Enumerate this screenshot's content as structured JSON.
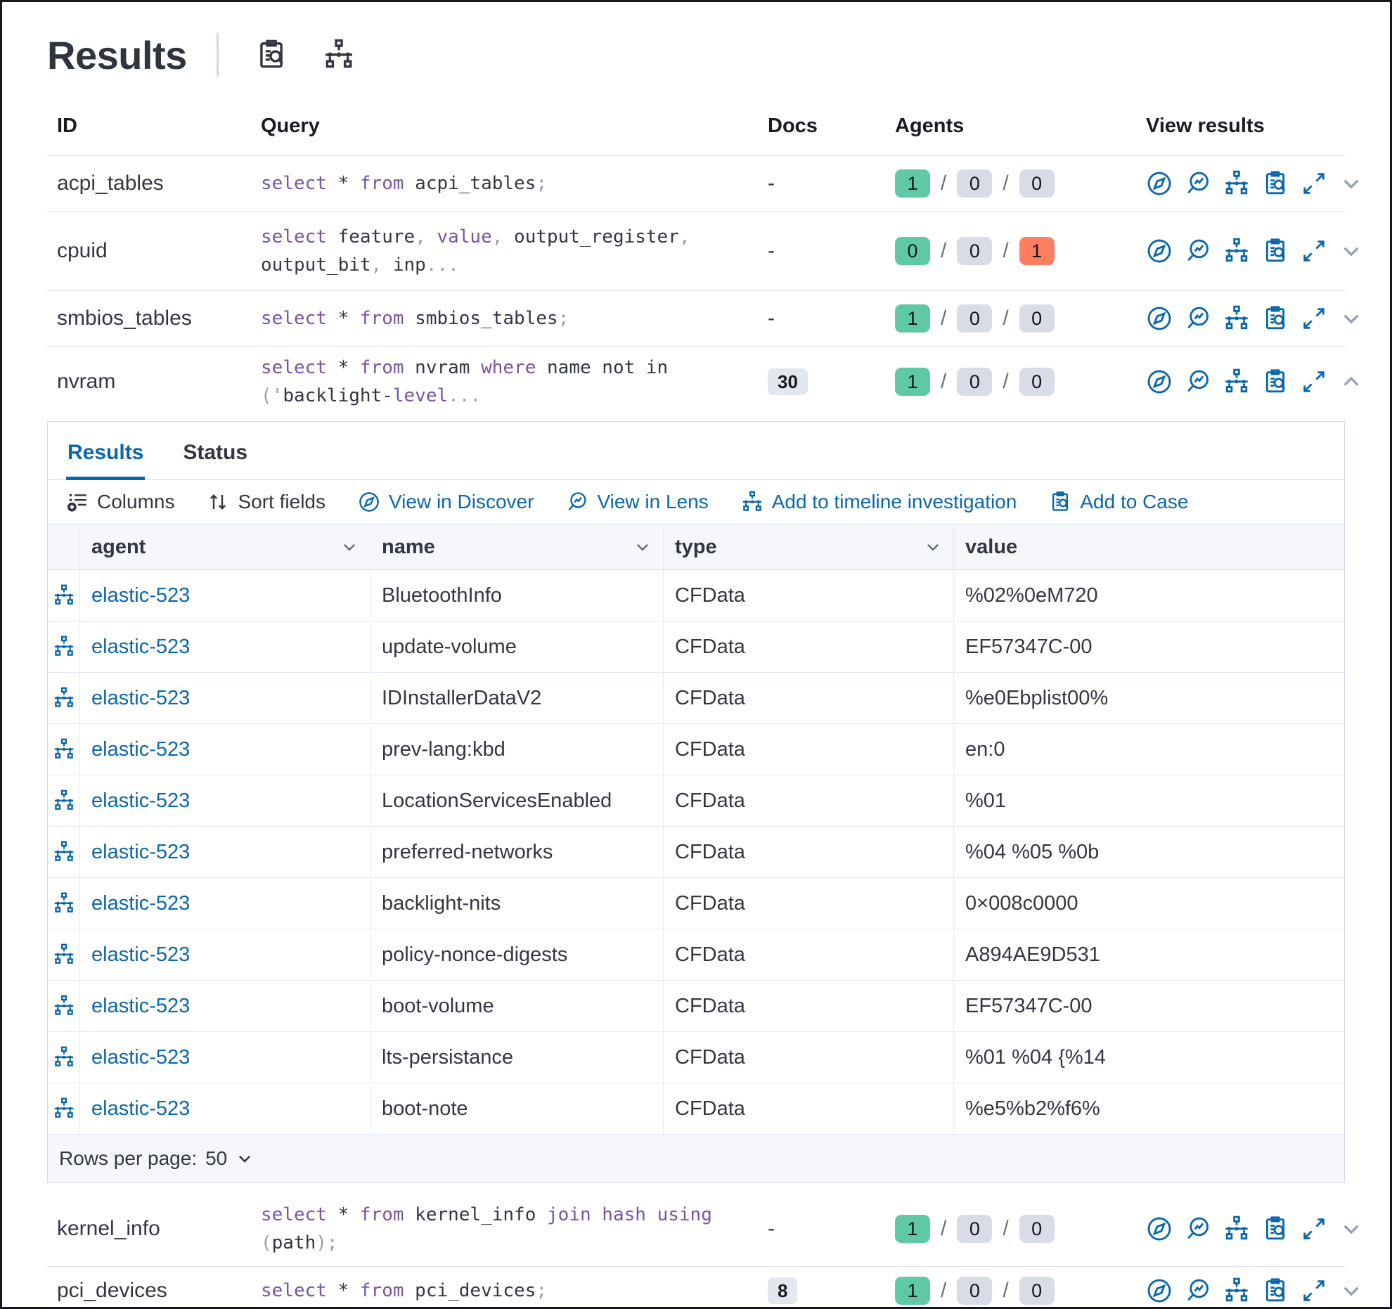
{
  "header": {
    "title": "Results",
    "icons": [
      "inspect-clipboard-icon",
      "timeline-hierarchy-icon"
    ]
  },
  "table": {
    "columns": {
      "id": "ID",
      "query": "Query",
      "docs": "Docs",
      "agents": "Agents",
      "view_results": "View results"
    }
  },
  "queries": [
    {
      "id": "acpi_tables",
      "docs": "-",
      "expanded": false,
      "agents": {
        "ok": "1",
        "pending": "0",
        "failed": "0"
      },
      "segments": [
        {
          "t": "select",
          "c": "kw"
        },
        {
          "t": " * ",
          "c": "pl"
        },
        {
          "t": "from",
          "c": "kw"
        },
        {
          "t": " acpi_tables",
          "c": "pl"
        },
        {
          "t": ";",
          "c": "pu"
        }
      ]
    },
    {
      "id": "cpuid",
      "docs": "-",
      "expanded": false,
      "agents": {
        "ok": "0",
        "pending": "0",
        "failed": "1"
      },
      "segments": [
        {
          "t": "select",
          "c": "kw"
        },
        {
          "t": " feature",
          "c": "pl"
        },
        {
          "t": ",",
          "c": "pu"
        },
        {
          "t": " ",
          "c": "pl"
        },
        {
          "t": "value",
          "c": "kw"
        },
        {
          "t": ",",
          "c": "pu"
        },
        {
          "t": " output_register",
          "c": "pl"
        },
        {
          "t": ",",
          "c": "pu"
        },
        {
          "br": true
        },
        {
          "t": "output_bit",
          "c": "pl"
        },
        {
          "t": ",",
          "c": "pu"
        },
        {
          "t": " inp",
          "c": "pl"
        },
        {
          "t": "...",
          "c": "pu"
        }
      ]
    },
    {
      "id": "smbios_tables",
      "docs": "-",
      "expanded": false,
      "agents": {
        "ok": "1",
        "pending": "0",
        "failed": "0"
      },
      "segments": [
        {
          "t": "select",
          "c": "kw"
        },
        {
          "t": " * ",
          "c": "pl"
        },
        {
          "t": "from",
          "c": "kw"
        },
        {
          "t": " smbios_tables",
          "c": "pl"
        },
        {
          "t": ";",
          "c": "pu"
        }
      ]
    },
    {
      "id": "nvram",
      "docs": "30",
      "expanded": true,
      "agents": {
        "ok": "1",
        "pending": "0",
        "failed": "0"
      },
      "segments": [
        {
          "t": "select",
          "c": "kw"
        },
        {
          "t": " * ",
          "c": "pl"
        },
        {
          "t": "from",
          "c": "kw"
        },
        {
          "t": " nvram ",
          "c": "pl"
        },
        {
          "t": "where",
          "c": "kw"
        },
        {
          "t": " name not in",
          "c": "pl"
        },
        {
          "br": true
        },
        {
          "t": "('",
          "c": "pu"
        },
        {
          "t": "backlight-",
          "c": "pl"
        },
        {
          "t": "level",
          "c": "kw"
        },
        {
          "t": "...",
          "c": "pu"
        }
      ]
    },
    {
      "id": "kernel_info",
      "docs": "-",
      "expanded": false,
      "agents": {
        "ok": "1",
        "pending": "0",
        "failed": "0"
      },
      "segments": [
        {
          "t": "select",
          "c": "kw"
        },
        {
          "t": " * ",
          "c": "pl"
        },
        {
          "t": "from",
          "c": "kw"
        },
        {
          "t": " kernel_info ",
          "c": "pl"
        },
        {
          "t": "join",
          "c": "kw"
        },
        {
          "t": " ",
          "c": "pl"
        },
        {
          "t": "hash",
          "c": "kw"
        },
        {
          "t": " ",
          "c": "pl"
        },
        {
          "t": "using",
          "c": "kw"
        },
        {
          "t": " (",
          "c": "pu"
        },
        {
          "t": "path",
          "c": "pl"
        },
        {
          "t": ");",
          "c": "pu"
        }
      ]
    },
    {
      "id": "pci_devices",
      "docs": "8",
      "expanded": false,
      "agents": {
        "ok": "1",
        "pending": "0",
        "failed": "0"
      },
      "segments": [
        {
          "t": "select",
          "c": "kw"
        },
        {
          "t": " * ",
          "c": "pl"
        },
        {
          "t": "from",
          "c": "kw"
        },
        {
          "t": " pci_devices",
          "c": "pl"
        },
        {
          "t": ";",
          "c": "pu"
        }
      ]
    }
  ],
  "panel": {
    "tabs": [
      {
        "label": "Results",
        "active": true
      },
      {
        "label": "Status",
        "active": false
      }
    ],
    "toolbar": {
      "columns": "Columns",
      "sort_fields": "Sort fields",
      "view_in_discover": "View in Discover",
      "view_in_lens": "View in Lens",
      "add_to_timeline": "Add to timeline investigation",
      "add_to_case": "Add to Case"
    },
    "grid": {
      "columns": {
        "agent": "agent",
        "name": "name",
        "type": "type",
        "value": "value"
      },
      "rows": [
        {
          "agent": "elastic-523",
          "name": "BluetoothInfo",
          "type": "CFData",
          "value": "%02%0eM720"
        },
        {
          "agent": "elastic-523",
          "name": "update-volume",
          "type": "CFData",
          "value": "EF57347C-00"
        },
        {
          "agent": "elastic-523",
          "name": "IDInstallerDataV2",
          "type": "CFData",
          "value": "%e0Ebplist00%"
        },
        {
          "agent": "elastic-523",
          "name": "prev-lang:kbd",
          "type": "CFData",
          "value": "en:0"
        },
        {
          "agent": "elastic-523",
          "name": "LocationServicesEnabled",
          "type": "CFData",
          "value": "%01"
        },
        {
          "agent": "elastic-523",
          "name": "preferred-networks",
          "type": "CFData",
          "value": "%04 %05 %0b"
        },
        {
          "agent": "elastic-523",
          "name": "backlight-nits",
          "type": "CFData",
          "value": "0×008c0000"
        },
        {
          "agent": "elastic-523",
          "name": "policy-nonce-digests",
          "type": "CFData",
          "value": "A894AE9D531"
        },
        {
          "agent": "elastic-523",
          "name": "boot-volume",
          "type": "CFData",
          "value": "EF57347C-00"
        },
        {
          "agent": "elastic-523",
          "name": "lts-persistance",
          "type": "CFData",
          "value": "%01 %04 {%14"
        },
        {
          "agent": "elastic-523",
          "name": "boot-note",
          "type": "CFData",
          "value": "%e5%b2%f6%"
        }
      ]
    },
    "footer": {
      "rows_per_page_label": "Rows per page:",
      "rows_per_page_value": "50"
    }
  },
  "colors": {
    "link_blue": "#0b67ab",
    "badge_success": "#5fc9a5",
    "badge_default": "#d8dce7",
    "badge_danger": "#ff7e62",
    "sql_keyword": "#7655a8",
    "border": "#d3dae6"
  }
}
